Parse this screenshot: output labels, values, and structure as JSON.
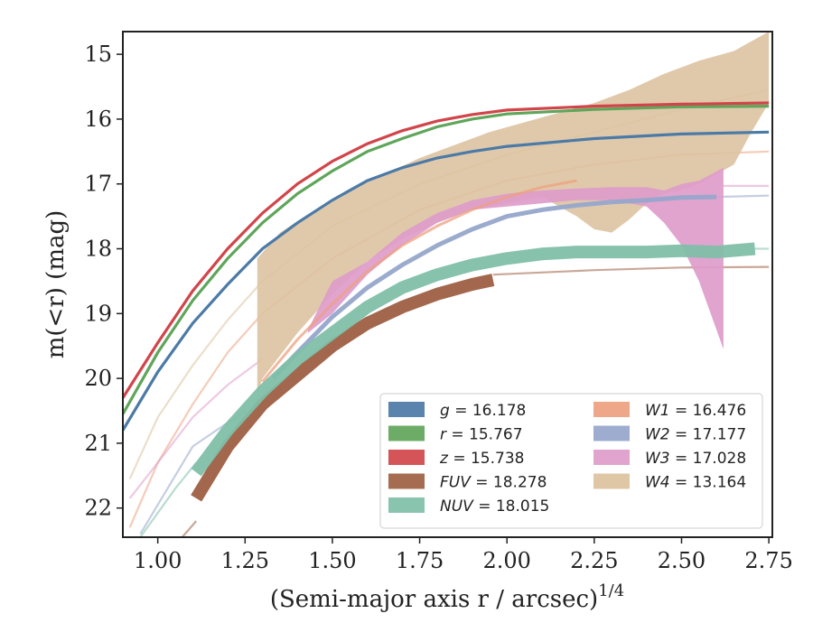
{
  "chart_data": {
    "type": "line",
    "xlabel": "(Semi-major axis r / arcsec)",
    "xlabel_exponent": "1/4",
    "ylabel": "m(<r) (mag)",
    "xlim": [
      0.9,
      2.76
    ],
    "ylim": [
      22.45,
      14.65
    ],
    "y_inverted": true,
    "x_ticks": [
      "1.00",
      "1.25",
      "1.50",
      "1.75",
      "2.00",
      "2.25",
      "2.50",
      "2.75"
    ],
    "x_tick_values": [
      1.0,
      1.25,
      1.5,
      1.75,
      2.0,
      2.25,
      2.5,
      2.75
    ],
    "y_ticks": [
      "15",
      "16",
      "17",
      "18",
      "19",
      "20",
      "21",
      "22"
    ],
    "y_tick_values": [
      15,
      16,
      17,
      18,
      19,
      20,
      21,
      22
    ],
    "grid": false,
    "legend_position": "lower-right",
    "series": [
      {
        "name": "g",
        "value": "16.178",
        "color": "#4c7aa6",
        "curve": [
          [
            0.9,
            20.8
          ],
          [
            1.0,
            19.9
          ],
          [
            1.1,
            19.15
          ],
          [
            1.2,
            18.55
          ],
          [
            1.3,
            18.0
          ],
          [
            1.4,
            17.6
          ],
          [
            1.5,
            17.25
          ],
          [
            1.6,
            16.95
          ],
          [
            1.7,
            16.75
          ],
          [
            1.8,
            16.6
          ],
          [
            1.9,
            16.5
          ],
          [
            2.0,
            16.42
          ],
          [
            2.25,
            16.3
          ],
          [
            2.5,
            16.23
          ],
          [
            2.75,
            16.2
          ]
        ]
      },
      {
        "name": "r",
        "value": "15.767",
        "color": "#5fa55a",
        "curve": [
          [
            0.9,
            20.55
          ],
          [
            1.0,
            19.6
          ],
          [
            1.1,
            18.8
          ],
          [
            1.2,
            18.15
          ],
          [
            1.3,
            17.6
          ],
          [
            1.4,
            17.15
          ],
          [
            1.5,
            16.8
          ],
          [
            1.6,
            16.5
          ],
          [
            1.7,
            16.3
          ],
          [
            1.8,
            16.12
          ],
          [
            1.9,
            16.0
          ],
          [
            2.0,
            15.92
          ],
          [
            2.25,
            15.85
          ],
          [
            2.5,
            15.81
          ],
          [
            2.75,
            15.8
          ]
        ]
      },
      {
        "name": "z",
        "value": "15.738",
        "color": "#d1454a",
        "curve": [
          [
            0.9,
            20.3
          ],
          [
            1.0,
            19.45
          ],
          [
            1.1,
            18.65
          ],
          [
            1.2,
            18.0
          ],
          [
            1.3,
            17.45
          ],
          [
            1.4,
            17.0
          ],
          [
            1.5,
            16.65
          ],
          [
            1.6,
            16.38
          ],
          [
            1.7,
            16.18
          ],
          [
            1.8,
            16.03
          ],
          [
            1.9,
            15.93
          ],
          [
            2.0,
            15.86
          ],
          [
            2.25,
            15.8
          ],
          [
            2.5,
            15.77
          ],
          [
            2.75,
            15.75
          ]
        ]
      },
      {
        "name": "FUV",
        "value": "18.278",
        "color": "#9e5f43"
      },
      {
        "name": "NUV",
        "value": "18.015",
        "color": "#7fbfa8"
      },
      {
        "name": "W1",
        "value": "16.476",
        "color": "#eda07f"
      },
      {
        "name": "W2",
        "value": "17.177",
        "color": "#96a6cb"
      },
      {
        "name": "W3",
        "value": "17.028",
        "color": "#de9ccb"
      },
      {
        "name": "W4",
        "value": "13.164",
        "color": "#dcc29e"
      }
    ],
    "faint_curves": [
      {
        "series": "W1",
        "points": [
          [
            0.92,
            22.3
          ],
          [
            1.0,
            21.3
          ],
          [
            1.1,
            20.4
          ],
          [
            1.2,
            19.6
          ],
          [
            1.3,
            19.0
          ],
          [
            1.5,
            18.15
          ],
          [
            1.75,
            17.4
          ],
          [
            2.0,
            16.95
          ],
          [
            2.25,
            16.7
          ],
          [
            2.5,
            16.55
          ],
          [
            2.75,
            16.5
          ]
        ]
      },
      {
        "series": "W2",
        "points": [
          [
            0.95,
            22.4
          ],
          [
            1.05,
            21.5
          ],
          [
            1.1,
            21.05
          ],
          [
            1.25,
            20.5
          ]
        ]
      },
      {
        "series": "W3",
        "points": [
          [
            0.92,
            21.85
          ],
          [
            1.0,
            21.3
          ],
          [
            1.1,
            20.6
          ],
          [
            1.2,
            20.1
          ],
          [
            1.3,
            19.7
          ]
        ]
      },
      {
        "series": "W4",
        "points": [
          [
            0.92,
            21.55
          ],
          [
            1.0,
            20.6
          ],
          [
            1.1,
            19.8
          ],
          [
            1.2,
            19.1
          ],
          [
            1.3,
            18.5
          ],
          [
            1.5,
            17.65
          ],
          [
            1.75,
            17.0
          ],
          [
            2.0,
            16.55
          ],
          [
            2.25,
            16.2
          ],
          [
            2.5,
            15.85
          ],
          [
            2.75,
            15.55
          ]
        ]
      },
      {
        "series": "NUV",
        "points": [
          [
            0.95,
            22.45
          ],
          [
            1.05,
            21.7
          ],
          [
            1.11,
            21.3
          ]
        ]
      },
      {
        "series": "FUV",
        "points": [
          [
            1.07,
            22.45
          ],
          [
            1.11,
            22.2
          ]
        ]
      },
      {
        "series": "FUV",
        "points": [
          [
            1.96,
            18.4
          ],
          [
            2.25,
            18.33
          ],
          [
            2.5,
            18.29
          ],
          [
            2.75,
            18.28
          ]
        ]
      },
      {
        "series": "NUV",
        "points": [
          [
            2.71,
            18.0
          ],
          [
            2.75,
            18.0
          ]
        ]
      },
      {
        "series": "W2",
        "points": [
          [
            2.6,
            17.2
          ],
          [
            2.75,
            17.18
          ]
        ]
      },
      {
        "series": "W3",
        "points": [
          [
            2.62,
            17.03
          ],
          [
            2.75,
            17.03
          ]
        ]
      }
    ],
    "bands": [
      {
        "series": "W4",
        "upper": [
          [
            1.285,
            18.15
          ],
          [
            1.35,
            17.75
          ],
          [
            1.45,
            17.4
          ],
          [
            1.55,
            17.1
          ],
          [
            1.65,
            16.85
          ],
          [
            1.75,
            16.6
          ],
          [
            1.85,
            16.4
          ],
          [
            1.95,
            16.2
          ],
          [
            2.05,
            16.05
          ],
          [
            2.15,
            15.9
          ],
          [
            2.25,
            15.75
          ],
          [
            2.35,
            15.55
          ],
          [
            2.45,
            15.3
          ],
          [
            2.55,
            15.1
          ],
          [
            2.65,
            14.95
          ],
          [
            2.75,
            14.65
          ]
        ],
        "lower": [
          [
            2.75,
            15.75
          ],
          [
            2.7,
            16.2
          ],
          [
            2.65,
            16.7
          ],
          [
            2.55,
            17.0
          ],
          [
            2.5,
            17.1
          ],
          [
            2.45,
            17.15
          ],
          [
            2.4,
            17.3
          ],
          [
            2.35,
            17.55
          ],
          [
            2.3,
            17.75
          ],
          [
            2.25,
            17.7
          ],
          [
            2.2,
            17.5
          ],
          [
            2.15,
            17.35
          ],
          [
            2.1,
            17.2
          ],
          [
            2.0,
            17.3
          ],
          [
            1.9,
            17.4
          ],
          [
            1.8,
            17.6
          ],
          [
            1.7,
            17.85
          ],
          [
            1.6,
            18.2
          ],
          [
            1.5,
            18.7
          ],
          [
            1.4,
            19.3
          ],
          [
            1.3,
            20.0
          ],
          [
            1.285,
            20.25
          ]
        ]
      },
      {
        "series": "W3",
        "upper": [
          [
            1.43,
            19.25
          ],
          [
            1.5,
            18.5
          ],
          [
            1.6,
            18.2
          ],
          [
            1.7,
            17.75
          ],
          [
            1.8,
            17.45
          ],
          [
            1.9,
            17.25
          ],
          [
            2.0,
            17.15
          ],
          [
            2.1,
            17.1
          ],
          [
            2.2,
            17.07
          ],
          [
            2.3,
            17.05
          ],
          [
            2.4,
            17.05
          ],
          [
            2.45,
            17.1
          ],
          [
            2.5,
            17.0
          ],
          [
            2.55,
            16.95
          ],
          [
            2.62,
            16.75
          ]
        ],
        "lower": [
          [
            2.62,
            19.55
          ],
          [
            2.55,
            18.5
          ],
          [
            2.5,
            17.95
          ],
          [
            2.45,
            17.6
          ],
          [
            2.4,
            17.35
          ],
          [
            2.3,
            17.25
          ],
          [
            2.2,
            17.25
          ],
          [
            2.1,
            17.3
          ],
          [
            2.0,
            17.35
          ],
          [
            1.9,
            17.4
          ],
          [
            1.8,
            17.6
          ],
          [
            1.7,
            17.95
          ],
          [
            1.6,
            18.4
          ],
          [
            1.5,
            19.0
          ],
          [
            1.43,
            19.3
          ]
        ]
      }
    ],
    "thick_lines": [
      {
        "series": "W2",
        "width": 5,
        "points": [
          [
            1.33,
            20.0
          ],
          [
            1.4,
            19.6
          ],
          [
            1.5,
            19.05
          ],
          [
            1.6,
            18.6
          ],
          [
            1.7,
            18.25
          ],
          [
            1.8,
            17.95
          ],
          [
            1.9,
            17.7
          ],
          [
            2.0,
            17.5
          ],
          [
            2.1,
            17.4
          ],
          [
            2.2,
            17.33
          ],
          [
            2.3,
            17.28
          ],
          [
            2.4,
            17.25
          ],
          [
            2.5,
            17.21
          ],
          [
            2.6,
            17.2
          ]
        ]
      },
      {
        "series": "W1",
        "width": 3,
        "points": [
          [
            1.3,
            20.05
          ],
          [
            1.4,
            19.4
          ],
          [
            1.5,
            18.85
          ],
          [
            1.6,
            18.35
          ],
          [
            1.7,
            17.95
          ],
          [
            1.8,
            17.65
          ],
          [
            1.9,
            17.4
          ],
          [
            2.0,
            17.2
          ],
          [
            2.1,
            17.05
          ],
          [
            2.2,
            16.95
          ]
        ]
      },
      {
        "series": "FUV",
        "width": 14,
        "points": [
          [
            1.11,
            21.85
          ],
          [
            1.2,
            21.05
          ],
          [
            1.3,
            20.4
          ],
          [
            1.4,
            19.95
          ],
          [
            1.5,
            19.5
          ],
          [
            1.6,
            19.15
          ],
          [
            1.7,
            18.9
          ],
          [
            1.8,
            18.7
          ],
          [
            1.9,
            18.55
          ],
          [
            1.96,
            18.48
          ]
        ]
      },
      {
        "series": "NUV",
        "width": 14,
        "points": [
          [
            1.11,
            21.45
          ],
          [
            1.2,
            20.8
          ],
          [
            1.3,
            20.2
          ],
          [
            1.4,
            19.7
          ],
          [
            1.5,
            19.3
          ],
          [
            1.6,
            18.9
          ],
          [
            1.7,
            18.6
          ],
          [
            1.8,
            18.4
          ],
          [
            1.9,
            18.25
          ],
          [
            2.0,
            18.15
          ],
          [
            2.1,
            18.08
          ],
          [
            2.2,
            18.05
          ],
          [
            2.3,
            18.05
          ],
          [
            2.4,
            18.05
          ],
          [
            2.5,
            18.03
          ],
          [
            2.6,
            18.05
          ],
          [
            2.71,
            18.0
          ]
        ]
      }
    ]
  }
}
